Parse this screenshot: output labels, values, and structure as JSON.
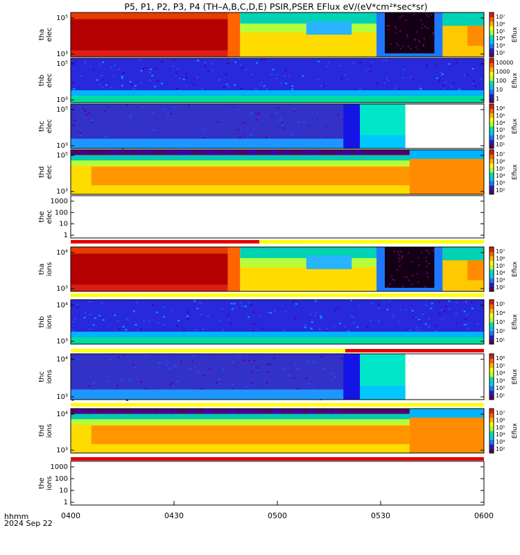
{
  "title": "P5, P1, P2, P3, P4 (TH–A,B,C,D,E) PSIR,PSER EFlux eV/(eV*cm²*sec*sr)",
  "colors": {
    "white": "#ffffff",
    "red": "#e60000",
    "yellow": "#ffff00",
    "black": "#000000",
    "ramp": [
      "#5a005a",
      "#2020d0",
      "#1e78ff",
      "#00c8ff",
      "#00e6a0",
      "#b4ff3c",
      "#ffff00",
      "#ffb400",
      "#ff6400",
      "#dc1e14"
    ]
  },
  "chart_data": {
    "type": "heatmap",
    "time_axis": {
      "label_line1": "hhmm",
      "label_line2": "2024 Sep 22",
      "ticks": [
        "0400",
        "0430",
        "0500",
        "0530",
        "0600"
      ],
      "range_minutes": [
        0,
        120
      ]
    },
    "panels": [
      {
        "id": "tha-elec",
        "ylabel": [
          "tha",
          "elec"
        ],
        "yticks": [
          "10⁵",
          "10³"
        ],
        "cbar_label": "Eflux",
        "cbar_ticks": [
          "10⁷",
          "10⁶",
          "10⁵",
          "10⁴",
          "10³",
          "10²"
        ],
        "fill": "tha"
      },
      {
        "id": "thb-elec",
        "ylabel": [
          "thb",
          "elec"
        ],
        "yticks": [
          "10⁵",
          "10³"
        ],
        "cbar_label": "Eflux",
        "cbar_ticks": [
          "10000",
          "1000",
          "100",
          "10",
          "1"
        ],
        "fill": "thb"
      },
      {
        "id": "thc-elec",
        "ylabel": [
          "thc",
          "elec"
        ],
        "yticks": [
          "10⁵",
          "10³"
        ],
        "cbar_label": "Eflux",
        "cbar_ticks": [
          "10⁶",
          "10⁵",
          "10⁴",
          "10³",
          "10²",
          "10¹"
        ],
        "fill": "thc"
      },
      {
        "id": "thd-elec",
        "ylabel": [
          "thd",
          "elec"
        ],
        "yticks": [
          "10⁵",
          "10³"
        ],
        "cbar_label": "Eflux",
        "cbar_ticks": [
          "10⁷",
          "10⁶",
          "10⁵",
          "10⁴",
          "10³",
          "10²"
        ],
        "fill": "thd"
      },
      {
        "id": "the-elec",
        "ylabel": [
          "the",
          "elec"
        ],
        "yticks": [
          "1000",
          "100",
          "10",
          "1"
        ],
        "cbar_label": "",
        "cbar_ticks": [],
        "fill": "empty"
      },
      {
        "id": "tha-ions",
        "ylabel": [
          "tha",
          "ions"
        ],
        "yticks": [
          "10⁴",
          "10³"
        ],
        "cbar_label": "Eflux",
        "cbar_ticks": [
          "10⁷",
          "10⁶",
          "10⁵",
          "10⁴",
          "10³",
          "10²"
        ],
        "fill": "tha"
      },
      {
        "id": "thb-ions",
        "ylabel": [
          "thb",
          "ions"
        ],
        "yticks": [
          "10⁴",
          "10³"
        ],
        "cbar_label": "Eflux",
        "cbar_ticks": [
          "10⁵",
          "10⁴",
          "10³",
          "10²",
          "10¹"
        ],
        "fill": "thb"
      },
      {
        "id": "thc-ions",
        "ylabel": [
          "thc",
          "ions"
        ],
        "yticks": [
          "10⁴",
          "10³"
        ],
        "cbar_label": "Eflux",
        "cbar_ticks": [
          "10⁶",
          "10⁵",
          "10⁴",
          "10³",
          "10²",
          "10¹"
        ],
        "fill": "thc"
      },
      {
        "id": "thd-ions",
        "ylabel": [
          "thd",
          "ions"
        ],
        "yticks": [
          "10⁴",
          "10³"
        ],
        "cbar_label": "Eflux",
        "cbar_ticks": [
          "10⁷",
          "10⁶",
          "10⁵",
          "10⁴",
          "10³",
          "10²"
        ],
        "fill": "thd"
      },
      {
        "id": "the-ions",
        "ylabel": [
          "the",
          "ions"
        ],
        "yticks": [
          "1000",
          "100",
          "10",
          "1"
        ],
        "cbar_label": "",
        "cbar_ticks": [],
        "fill": "empty"
      }
    ]
  }
}
